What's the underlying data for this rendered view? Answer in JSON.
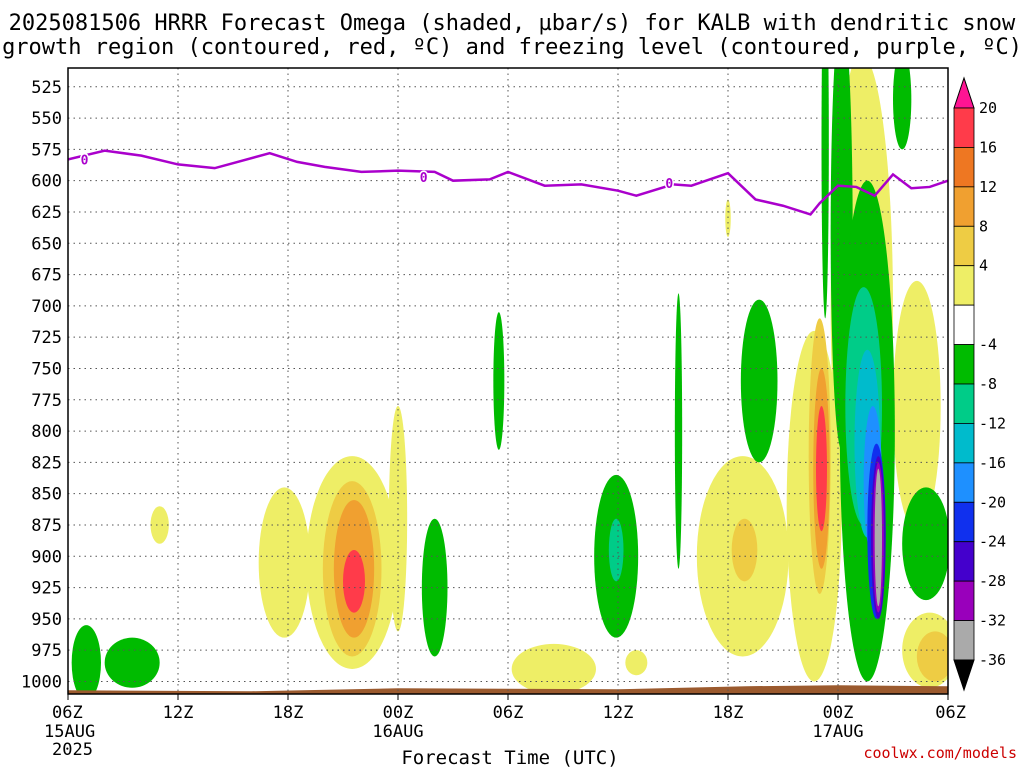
{
  "title": {
    "line1": "2025081506 HRRR Forecast Omega (shaded, µbar/s) for KALB with dendritic snow",
    "line2": "growth region (contoured, red, ºC) and freezing level (contoured, purple, ºC)"
  },
  "credit": "coolwx.com/models",
  "colors": {
    "freezing_level": "#aa00cc",
    "ground": "#9b5a2e",
    "frame": "#000000"
  },
  "chart_data": {
    "type": "heatmap",
    "xlabel": "Forecast Time (UTC)",
    "x_range_hours": [
      0,
      48
    ],
    "ylim": [
      1010,
      510
    ],
    "y_scale": "pressure (hPa), reversed",
    "grid": true,
    "x_ticks": [
      {
        "hour": 0,
        "label": "06Z",
        "sub1": "15AUG",
        "sub2": "2025"
      },
      {
        "hour": 6,
        "label": "12Z",
        "sub1": "",
        "sub2": ""
      },
      {
        "hour": 12,
        "label": "18Z",
        "sub1": "",
        "sub2": ""
      },
      {
        "hour": 18,
        "label": "00Z",
        "sub1": "16AUG",
        "sub2": ""
      },
      {
        "hour": 24,
        "label": "06Z",
        "sub1": "",
        "sub2": ""
      },
      {
        "hour": 30,
        "label": "12Z",
        "sub1": "",
        "sub2": ""
      },
      {
        "hour": 36,
        "label": "18Z",
        "sub1": "",
        "sub2": ""
      },
      {
        "hour": 42,
        "label": "00Z",
        "sub1": "17AUG",
        "sub2": ""
      },
      {
        "hour": 48,
        "label": "06Z",
        "sub1": "",
        "sub2": ""
      }
    ],
    "y_ticks": [
      525,
      550,
      575,
      600,
      625,
      650,
      675,
      700,
      725,
      750,
      775,
      800,
      825,
      850,
      875,
      900,
      925,
      950,
      975,
      1000
    ],
    "colorbar": {
      "levels": [
        "20",
        "16",
        "12",
        "8",
        "4",
        "-4",
        "-8",
        "-12",
        "-16",
        "-20",
        "-24",
        "-28",
        "-32",
        "-36"
      ],
      "colors": [
        "#ff1493",
        "#ff3b4a",
        "#ee7722",
        "#f0a030",
        "#eecc44",
        "#eeee66",
        "#ffffff",
        "#00bb00",
        "#00cc88",
        "#00bbcc",
        "#1e90ff",
        "#1030ee",
        "#4400cc",
        "#9900bb",
        "#aaaaaa",
        "#000000"
      ]
    },
    "freezing_level": {
      "name": "0",
      "points": [
        [
          0,
          583
        ],
        [
          2,
          576
        ],
        [
          4,
          580
        ],
        [
          6,
          587
        ],
        [
          8,
          590
        ],
        [
          9,
          586
        ],
        [
          11,
          578
        ],
        [
          12.5,
          585
        ],
        [
          14,
          589
        ],
        [
          16,
          593
        ],
        [
          18,
          592
        ],
        [
          20,
          593
        ],
        [
          21,
          600
        ],
        [
          23,
          599
        ],
        [
          24,
          593
        ],
        [
          26,
          604
        ],
        [
          28,
          603
        ],
        [
          30,
          608
        ],
        [
          31,
          612
        ],
        [
          33,
          603
        ],
        [
          34,
          604
        ],
        [
          35,
          599
        ],
        [
          36,
          594
        ],
        [
          37.5,
          615
        ],
        [
          39,
          620
        ],
        [
          40.5,
          627
        ],
        [
          41,
          618
        ],
        [
          42,
          604
        ],
        [
          43,
          605
        ],
        [
          44,
          612
        ],
        [
          45,
          595
        ],
        [
          46,
          606
        ],
        [
          47,
          605
        ],
        [
          48,
          600
        ]
      ],
      "labels": [
        [
          0.9,
          583
        ],
        [
          19.4,
          597
        ],
        [
          32.8,
          602
        ]
      ]
    },
    "omega_regions": [
      {
        "value": "4",
        "shape": "ellipse",
        "center": [
          11.8,
          905
        ],
        "rx_hours": 1.4,
        "half_height_hpa": 60
      },
      {
        "value": "4",
        "shape": "ellipse",
        "center": [
          15.5,
          905
        ],
        "rx_hours": 2.5,
        "half_height_hpa": 85
      },
      {
        "value": "4",
        "shape": "ellipse",
        "center": [
          18,
          870
        ],
        "rx_hours": 0.5,
        "half_height_hpa": 90
      },
      {
        "value": "4",
        "shape": "ellipse",
        "center": [
          5,
          875
        ],
        "rx_hours": 0.5,
        "half_height_hpa": 15
      },
      {
        "value": "4",
        "shape": "ellipse",
        "center": [
          26.5,
          990
        ],
        "rx_hours": 2.3,
        "half_height_hpa": 20
      },
      {
        "value": "4",
        "shape": "ellipse",
        "center": [
          31,
          985
        ],
        "rx_hours": 0.6,
        "half_height_hpa": 10
      },
      {
        "value": "4",
        "shape": "ellipse",
        "center": [
          36.8,
          900
        ],
        "rx_hours": 2.5,
        "half_height_hpa": 80
      },
      {
        "value": "4",
        "shape": "ellipse",
        "center": [
          40.7,
          860
        ],
        "rx_hours": 1.5,
        "half_height_hpa": 140
      },
      {
        "value": "4",
        "shape": "ellipse",
        "center": [
          43.3,
          700
        ],
        "rx_hours": 1.7,
        "half_height_hpa": 200
      },
      {
        "value": "4",
        "shape": "ellipse",
        "center": [
          43.2,
          540
        ],
        "rx_hours": 0.7,
        "half_height_hpa": 40
      },
      {
        "value": "4",
        "shape": "ellipse",
        "center": [
          46.3,
          780
        ],
        "rx_hours": 1.3,
        "half_height_hpa": 100
      },
      {
        "value": "4",
        "shape": "ellipse",
        "center": [
          47,
          975
        ],
        "rx_hours": 1.5,
        "half_height_hpa": 30
      },
      {
        "value": "4",
        "shape": "ellipse",
        "center": [
          36,
          630
        ],
        "rx_hours": 0.15,
        "half_height_hpa": 15
      },
      {
        "value": "8",
        "shape": "ellipse",
        "center": [
          15.5,
          910
        ],
        "rx_hours": 1.6,
        "half_height_hpa": 70
      },
      {
        "value": "8",
        "shape": "ellipse",
        "center": [
          36.9,
          895
        ],
        "rx_hours": 0.7,
        "half_height_hpa": 25
      },
      {
        "value": "8",
        "shape": "ellipse",
        "center": [
          41,
          820
        ],
        "rx_hours": 0.6,
        "half_height_hpa": 110
      },
      {
        "value": "8",
        "shape": "ellipse",
        "center": [
          47.3,
          980
        ],
        "rx_hours": 1,
        "half_height_hpa": 20
      },
      {
        "value": "12",
        "shape": "ellipse",
        "center": [
          15.6,
          910
        ],
        "rx_hours": 1.1,
        "half_height_hpa": 55
      },
      {
        "value": "12",
        "shape": "ellipse",
        "center": [
          41.1,
          830
        ],
        "rx_hours": 0.45,
        "half_height_hpa": 80
      },
      {
        "value": "16",
        "shape": "ellipse",
        "center": [
          15.6,
          920
        ],
        "rx_hours": 0.6,
        "half_height_hpa": 25
      },
      {
        "value": "16",
        "shape": "ellipse",
        "center": [
          41.1,
          830
        ],
        "rx_hours": 0.3,
        "half_height_hpa": 50
      },
      {
        "value": "-4",
        "shape": "ellipse",
        "center": [
          1,
          985
        ],
        "rx_hours": 0.8,
        "half_height_hpa": 30
      },
      {
        "value": "-4",
        "shape": "ellipse",
        "center": [
          3.5,
          985
        ],
        "rx_hours": 1.5,
        "half_height_hpa": 20
      },
      {
        "value": "-4",
        "shape": "ellipse",
        "center": [
          20,
          925
        ],
        "rx_hours": 0.7,
        "half_height_hpa": 55
      },
      {
        "value": "-4",
        "shape": "ellipse",
        "center": [
          23.5,
          760
        ],
        "rx_hours": 0.3,
        "half_height_hpa": 55
      },
      {
        "value": "-4",
        "shape": "ellipse",
        "center": [
          29.9,
          900
        ],
        "rx_hours": 1.2,
        "half_height_hpa": 65
      },
      {
        "value": "-4",
        "shape": "ellipse",
        "center": [
          33.3,
          800
        ],
        "rx_hours": 0.2,
        "half_height_hpa": 110
      },
      {
        "value": "-4",
        "shape": "ellipse",
        "center": [
          37.7,
          760
        ],
        "rx_hours": 1,
        "half_height_hpa": 65
      },
      {
        "value": "-4",
        "shape": "ellipse",
        "center": [
          42.2,
          640
        ],
        "rx_hours": 0.6,
        "half_height_hpa": 175
      },
      {
        "value": "-4",
        "shape": "ellipse",
        "center": [
          41.3,
          570
        ],
        "rx_hours": 0.2,
        "half_height_hpa": 140
      },
      {
        "value": "-4",
        "shape": "ellipse",
        "center": [
          43.6,
          800
        ],
        "rx_hours": 1.5,
        "half_height_hpa": 200
      },
      {
        "value": "-4",
        "shape": "ellipse",
        "center": [
          46.8,
          890
        ],
        "rx_hours": 1.3,
        "half_height_hpa": 45
      },
      {
        "value": "-4",
        "shape": "ellipse",
        "center": [
          45.5,
          535
        ],
        "rx_hours": 0.5,
        "half_height_hpa": 40
      },
      {
        "value": "-8",
        "shape": "ellipse",
        "center": [
          43.4,
          780
        ],
        "rx_hours": 1,
        "half_height_hpa": 95
      },
      {
        "value": "-8",
        "shape": "ellipse",
        "center": [
          29.9,
          895
        ],
        "rx_hours": 0.4,
        "half_height_hpa": 25
      },
      {
        "value": "-12",
        "shape": "ellipse",
        "center": [
          43.6,
          810
        ],
        "rx_hours": 0.7,
        "half_height_hpa": 75
      },
      {
        "value": "-16",
        "shape": "ellipse",
        "center": [
          43.9,
          840
        ],
        "rx_hours": 0.5,
        "half_height_hpa": 60
      },
      {
        "value": "-20",
        "shape": "ellipse",
        "center": [
          44.1,
          880
        ],
        "rx_hours": 0.5,
        "half_height_hpa": 70
      },
      {
        "value": "-24",
        "shape": "ellipse",
        "center": [
          44.2,
          885
        ],
        "rx_hours": 0.4,
        "half_height_hpa": 65
      },
      {
        "value": "-28",
        "shape": "ellipse",
        "center": [
          44.2,
          885
        ],
        "rx_hours": 0.3,
        "half_height_hpa": 60
      },
      {
        "value": "-32",
        "shape": "ellipse",
        "center": [
          44.2,
          885
        ],
        "rx_hours": 0.2,
        "half_height_hpa": 55
      }
    ]
  }
}
